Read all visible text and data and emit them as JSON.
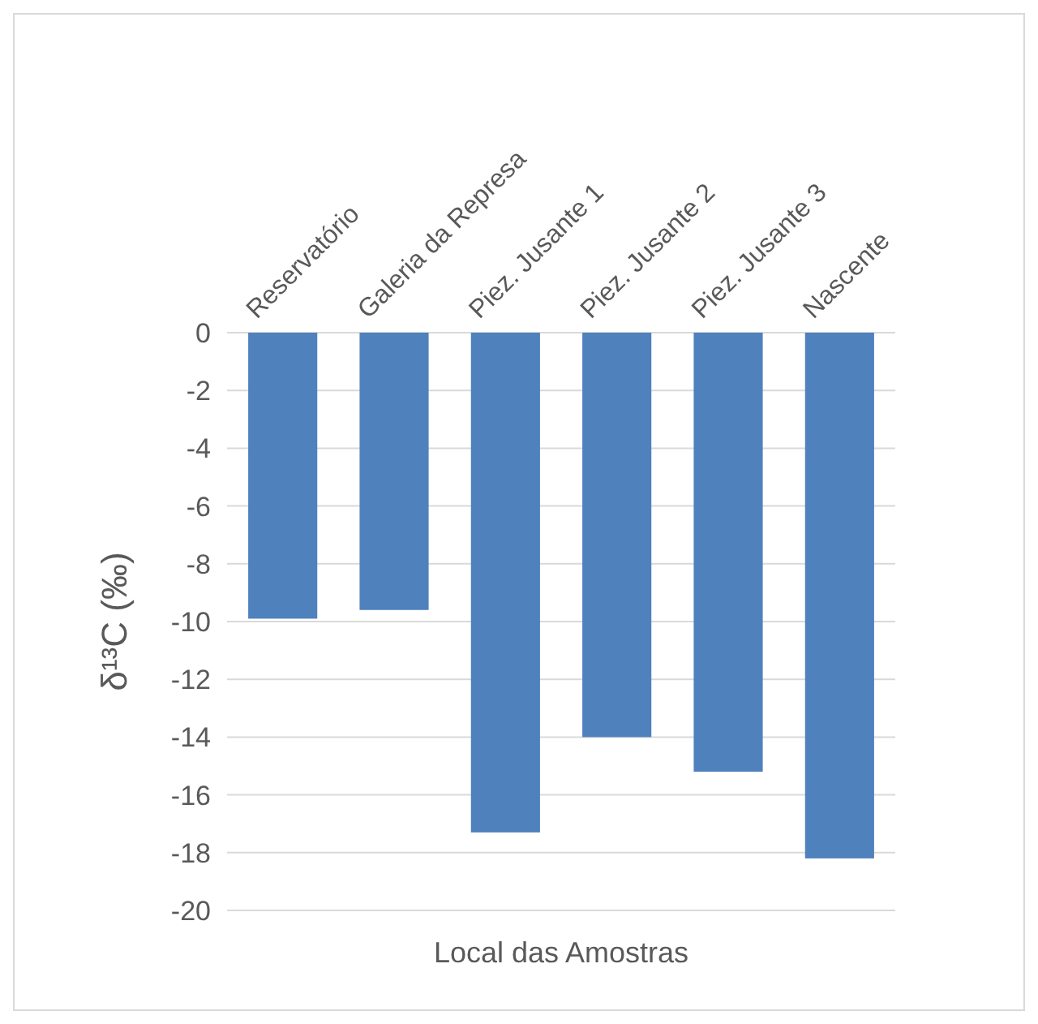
{
  "chart_data": {
    "type": "bar",
    "xlabel": "Local das Amostras",
    "ylabel": "δ¹³C (‰)",
    "categories": [
      "Reservatório",
      "Galeria da Represa",
      "Piez. Jusante 1",
      "Piez. Jusante 2",
      "Piez. Jusante 3",
      "Nascente"
    ],
    "series": [
      {
        "color": "#4f81bd",
        "values": [
          -9.9,
          -9.6,
          -17.3,
          -14.0,
          -15.2,
          -18.2
        ]
      }
    ],
    "ylim": [
      -20,
      0
    ],
    "yticks": [
      -20,
      -18,
      -16,
      -14,
      -12,
      -10,
      -8,
      -6,
      -4,
      -2,
      0
    ],
    "grid": "y"
  }
}
